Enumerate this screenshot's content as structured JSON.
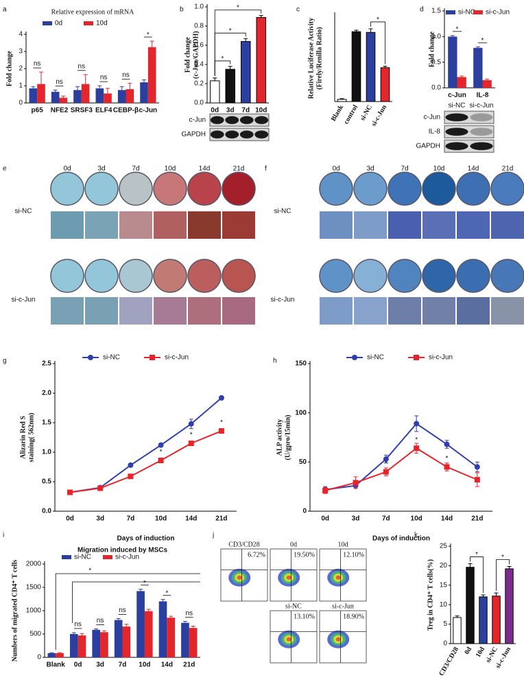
{
  "chart_data": [
    {
      "panel": "a",
      "type": "bar",
      "title": "Relative expression of mRNA",
      "ylabel": "Fold change",
      "categories": [
        "p65",
        "NFE2",
        "SRSF3",
        "ELF4",
        "CEBP-β",
        "c-Jun"
      ],
      "series": [
        {
          "name": "0d",
          "color": "#2b3f9e",
          "values": [
            0.85,
            0.65,
            0.75,
            0.85,
            0.75,
            1.2
          ],
          "errors": [
            0.1,
            0.1,
            0.2,
            0.15,
            0.2,
            0.15
          ]
        },
        {
          "name": "10d",
          "color": "#e3262b",
          "values": [
            1.1,
            0.3,
            1.1,
            0.55,
            0.8,
            3.25
          ],
          "errors": [
            0.7,
            0.1,
            0.55,
            0.3,
            0.35,
            0.35
          ]
        }
      ],
      "ylim": [
        0,
        4
      ],
      "yticks": [
        0,
        1,
        2,
        3,
        4
      ],
      "annotations": [
        "ns",
        "ns",
        "ns",
        "ns",
        "ns",
        "*"
      ]
    },
    {
      "panel": "b",
      "type": "bar",
      "ylabel": [
        "Fold change",
        "(c-Jun/GAPDH)"
      ],
      "categories": [
        "0d",
        "3d",
        "7d",
        "10d"
      ],
      "values": [
        0.23,
        0.35,
        0.64,
        0.89
      ],
      "errors": [
        0.03,
        0.03,
        0.03,
        0.02
      ],
      "colors": [
        "#ffffff",
        "#111111",
        "#2b3f9e",
        "#e3262b"
      ],
      "ylim": [
        0,
        1
      ],
      "yticks": [
        {
          "value": 0,
          "label": "0.0"
        },
        {
          "value": 0.2,
          "label": "0.2"
        },
        {
          "value": 0.4,
          "label": "0.4"
        },
        {
          "value": 0.6,
          "label": "0.6"
        },
        {
          "value": 0.8,
          "label": "0.8"
        },
        {
          "value": 1,
          "label": "1.0"
        }
      ],
      "annotations": [
        "*",
        "*",
        "*"
      ],
      "blot_labels": [
        "c-Jun",
        "GAPDH"
      ]
    },
    {
      "panel": "c",
      "type": "bar",
      "ylabel": [
        "Relative Luciferase Activity",
        "(Firely/Renilla Ratio)"
      ],
      "categories": [
        "Blank",
        "control",
        "si-NC",
        "si-c-Jun"
      ],
      "values": [
        0.03,
        0.97,
        0.96,
        0.47
      ],
      "errors": [
        0.01,
        0.02,
        0.05,
        0.02
      ],
      "colors": [
        "#ffffff",
        "#111111",
        "#2b3f9e",
        "#e3262b"
      ],
      "ylim": [
        0,
        1.2
      ],
      "annotations": [
        "*"
      ]
    },
    {
      "panel": "d",
      "type": "bar",
      "ylabel": "Fold change",
      "categories": [
        "c-Jun",
        "IL-8"
      ],
      "series": [
        {
          "name": "si-NC",
          "color": "#2b3f9e",
          "values": [
            1.0,
            0.78
          ],
          "errors": [
            0.02,
            0.02
          ]
        },
        {
          "name": "si-c-Jun",
          "color": "#e3262b",
          "values": [
            0.21,
            0.15
          ],
          "errors": [
            0.02,
            0.02
          ]
        }
      ],
      "ylim": [
        0,
        1.5
      ],
      "yticks": [
        {
          "value": 0,
          "label": "0.0"
        },
        {
          "value": 0.5,
          "label": "0.5"
        },
        {
          "value": 1,
          "label": "1.0"
        },
        {
          "value": 1.5,
          "label": "1.5"
        }
      ],
      "annotations": [
        "*",
        "*"
      ],
      "blot_labels": [
        "c-Jun",
        "IL-8",
        "GAPDH"
      ],
      "lanes": [
        "si-NC",
        "si-c-Jun"
      ]
    },
    {
      "panel": "e",
      "type": "image",
      "columns": [
        "0d",
        "3d",
        "7d",
        "10d",
        "14d",
        "21d"
      ],
      "rows": [
        "si-NC",
        "si-c-Jun"
      ]
    },
    {
      "panel": "f",
      "type": "image",
      "columns": [
        "0d",
        "3d",
        "7d",
        "10d",
        "14d",
        "21d"
      ],
      "rows": [
        "si-NC",
        "si-c-Jun"
      ]
    },
    {
      "panel": "g",
      "type": "line",
      "ylabel": [
        "Alizarin Red S",
        "staining( 562nm)"
      ],
      "xlabel": "Days of induction",
      "categories": [
        "0d",
        "3d",
        "7d",
        "10d",
        "14d",
        "21d"
      ],
      "series": [
        {
          "name": "si-NC",
          "color": "#2f3fb0",
          "marker": "circle",
          "values": [
            0.32,
            0.4,
            0.78,
            1.12,
            1.48,
            1.92
          ],
          "errors": [
            0.02,
            0.02,
            0.02,
            0.03,
            0.08,
            0.03
          ]
        },
        {
          "name": "si-c-Jun",
          "color": "#e8242a",
          "marker": "square",
          "values": [
            0.32,
            0.39,
            0.59,
            0.86,
            1.15,
            1.36
          ],
          "errors": [
            0.03,
            0.03,
            0.03,
            0.04,
            0.03,
            0.03
          ]
        }
      ],
      "ylim": [
        0,
        2.5
      ],
      "yticks": [
        {
          "value": 0,
          "label": "0.0"
        },
        0.5,
        {
          "value": 1,
          "label": "1.0"
        },
        1.5,
        {
          "value": 2,
          "label": "2.0"
        },
        2.5
      ],
      "annotations": [
        "*",
        "*",
        "*"
      ]
    },
    {
      "panel": "h",
      "type": "line",
      "ylabel": [
        "ALP activity",
        "(U/gpro/15min)"
      ],
      "xlabel": "Days of induction",
      "categories": [
        "0d",
        "3d",
        "7d",
        "10d",
        "14d",
        "21d"
      ],
      "series": [
        {
          "name": "si-NC",
          "color": "#2f3fb0",
          "marker": "circle",
          "values": [
            22,
            26,
            53,
            89,
            68,
            45
          ],
          "errors": [
            3,
            3,
            4,
            8,
            4,
            5
          ]
        },
        {
          "name": "si-c-Jun",
          "color": "#e8242a",
          "marker": "square",
          "values": [
            21,
            29,
            40,
            64,
            45,
            32
          ],
          "errors": [
            3,
            6,
            4,
            5,
            4,
            7
          ]
        }
      ],
      "ylim": [
        0,
        150
      ],
      "yticks": [
        0,
        50,
        100,
        150
      ],
      "annotations": [
        "*",
        "*",
        "*"
      ]
    },
    {
      "panel": "i",
      "type": "bar",
      "title": "Migration induced by MSCs",
      "ylabel": "Numbers of migrated CD4⁺ T cells",
      "categories": [
        "Blank",
        "0d",
        "3d",
        "7d",
        "10d",
        "14d",
        "21d"
      ],
      "series": [
        {
          "name": "si-NC",
          "color": "#2b3f9e",
          "values": [
            90,
            500,
            590,
            800,
            1420,
            1200,
            740
          ],
          "errors": [
            10,
            30,
            20,
            30,
            40,
            40,
            30
          ]
        },
        {
          "name": "si-c-Jun",
          "color": "#e3262b",
          "values": [
            90,
            470,
            540,
            660,
            990,
            850,
            630
          ],
          "errors": [
            10,
            40,
            30,
            50,
            40,
            30,
            40
          ]
        }
      ],
      "ylim": [
        0,
        2000
      ],
      "yticks": [
        0,
        500,
        1000,
        1500,
        2000
      ],
      "annotations": [
        "ns",
        "ns",
        "ns",
        "*",
        "*",
        "ns",
        "*"
      ]
    },
    {
      "panel": "j",
      "type": "flow",
      "categories": [
        "CD3/CD28",
        "0d",
        "10d",
        "si-NC",
        "si-c-Jun"
      ],
      "values": [
        6.72,
        19.5,
        12.1,
        13.1,
        18.9
      ],
      "value_labels": [
        "6.72%",
        "19.50%",
        "12.10%",
        "13.10%",
        "18.90%"
      ]
    },
    {
      "panel": "k",
      "type": "bar",
      "ylabel": "Treg in CD4⁺ T cells(%)",
      "categories": [
        "CD3/CD28",
        "0d",
        "10d",
        "si-NC",
        "si-c-Jun"
      ],
      "values": [
        6.7,
        19.6,
        12.0,
        12.2,
        19.2
      ],
      "errors": [
        0.4,
        0.9,
        0.5,
        0.8,
        0.6
      ],
      "colors": [
        "#ffffff",
        "#111111",
        "#2b3f9e",
        "#e3262b",
        "#7b2d8e"
      ],
      "ylim": [
        0,
        25
      ],
      "yticks": [
        0,
        5,
        10,
        15,
        20,
        25
      ],
      "annotations": [
        "*",
        "*"
      ]
    }
  ]
}
